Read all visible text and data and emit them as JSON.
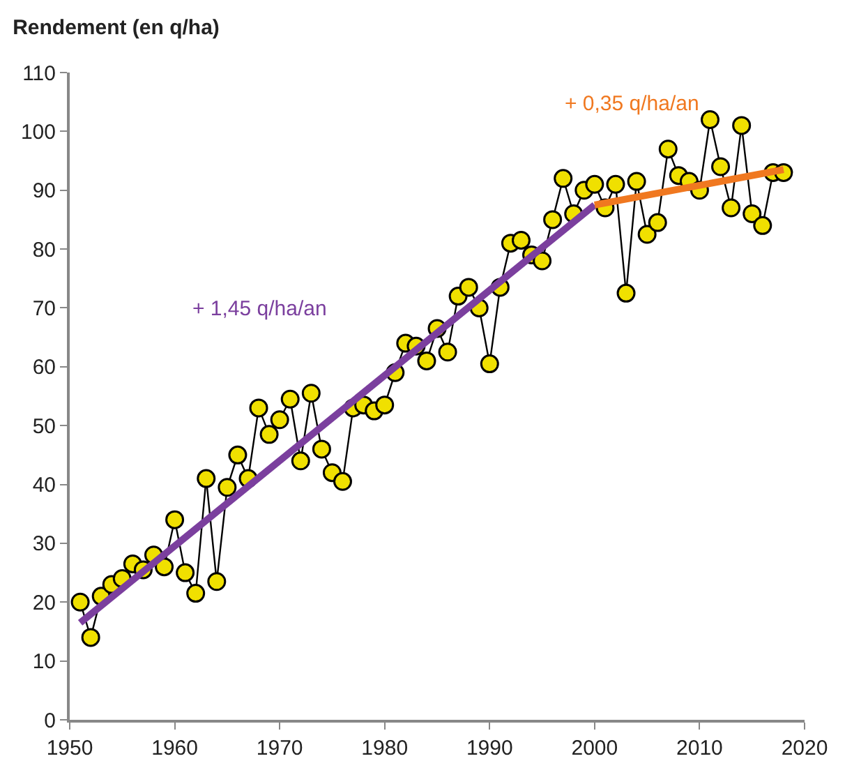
{
  "chart_data": {
    "type": "line",
    "title": "Rendement (en q/ha)",
    "x": [
      1951,
      1952,
      1953,
      1954,
      1955,
      1956,
      1957,
      1958,
      1959,
      1960,
      1961,
      1962,
      1963,
      1964,
      1965,
      1966,
      1967,
      1968,
      1969,
      1970,
      1971,
      1972,
      1973,
      1974,
      1975,
      1976,
      1977,
      1978,
      1979,
      1980,
      1981,
      1982,
      1983,
      1984,
      1985,
      1986,
      1987,
      1988,
      1989,
      1990,
      1991,
      1992,
      1993,
      1994,
      1995,
      1996,
      1997,
      1998,
      1999,
      2000,
      2001,
      2002,
      2003,
      2004,
      2005,
      2006,
      2007,
      2008,
      2009,
      2010,
      2011,
      2012,
      2013,
      2014,
      2015,
      2016,
      2017,
      2018
    ],
    "series": [
      {
        "color": "#f0e000",
        "marker": "circle",
        "values": [
          20,
          14,
          21,
          23,
          24,
          26.5,
          25.5,
          28,
          26,
          34,
          25,
          21.5,
          41,
          23.5,
          39.5,
          45,
          41,
          53,
          48.5,
          51,
          54.5,
          44,
          55.5,
          46,
          42,
          40.5,
          53,
          53.5,
          52.5,
          53.5,
          59,
          64,
          63.5,
          61,
          66.5,
          62.5,
          72,
          73.5,
          70,
          60.5,
          73.5,
          81,
          81.5,
          79,
          78,
          85,
          92,
          86,
          90,
          91,
          87,
          91,
          72.5,
          91.5,
          82.5,
          84.5,
          97,
          92.5,
          91.5,
          90,
          102,
          94,
          87,
          101,
          86,
          84,
          93,
          93
        ]
      },
      {
        "color": "#7b3f9e",
        "marker": "none",
        "x": [
          1951,
          2000
        ],
        "values": [
          16.5,
          87.5
        ]
      },
      {
        "color": "#f07820",
        "marker": "none",
        "x": [
          2000,
          2018
        ],
        "values": [
          87.5,
          93.5
        ]
      }
    ],
    "annotations": [
      "+ 1,45 q/ha/an",
      "+ 0,35 q/ha/an"
    ],
    "xlim": [
      1950,
      2020
    ],
    "xticks": [
      1950,
      1960,
      1970,
      1980,
      1990,
      2000,
      2010,
      2020
    ],
    "ylim": [
      0,
      110
    ],
    "yticks": [
      0,
      10,
      20,
      30,
      40,
      50,
      60,
      70,
      80,
      90,
      100,
      110
    ],
    "legend": false
  }
}
